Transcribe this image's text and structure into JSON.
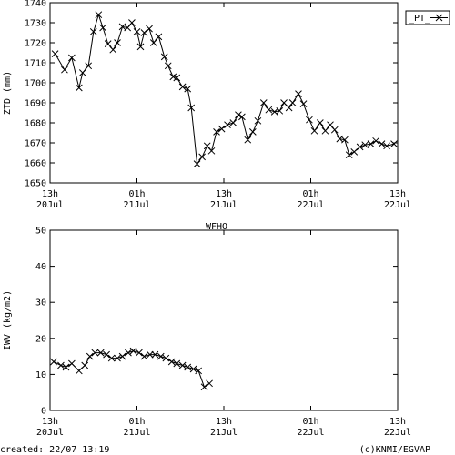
{
  "footer": {
    "created": "created: 22/07 13:19",
    "credit": "(c)KNMI/EGVAP"
  },
  "chart_data": [
    {
      "type": "line",
      "title": "",
      "xlabel": "",
      "ylabel": "ZTD (mm)",
      "ylim": [
        1650,
        1740
      ],
      "yticks": [
        1650,
        1660,
        1670,
        1680,
        1690,
        1700,
        1710,
        1720,
        1730,
        1740
      ],
      "xlim": [
        0,
        48
      ],
      "xticks": [
        {
          "x": 0,
          "line1": "13h",
          "line2": "20Jul"
        },
        {
          "x": 12,
          "line1": "01h",
          "line2": "21Jul"
        },
        {
          "x": 24,
          "line1": "13h",
          "line2": "21Jul"
        },
        {
          "x": 36,
          "line1": "01h",
          "line2": "22Jul"
        },
        {
          "x": 48,
          "line1": "13h",
          "line2": "22Jul"
        }
      ],
      "legend": {
        "position": "top-right",
        "label": "_PT_"
      },
      "series": [
        {
          "name": "_PT_",
          "x": [
            0.7,
            2.0,
            3.0,
            4.0,
            4.5,
            5.3,
            6.0,
            6.7,
            7.3,
            8.0,
            8.7,
            9.3,
            10.0,
            10.7,
            11.3,
            12.0,
            12.5,
            13.0,
            13.7,
            14.3,
            15.0,
            15.8,
            16.3,
            17.0,
            17.5,
            18.3,
            19.0,
            19.5,
            20.3,
            21.0,
            21.7,
            22.3,
            23.0,
            23.7,
            24.5,
            25.3,
            26.0,
            26.5,
            27.3,
            28.0,
            28.7,
            29.5,
            30.2,
            31.0,
            31.7,
            32.3,
            33.0,
            33.5,
            34.3,
            35.0,
            35.8,
            36.5,
            37.3,
            38.0,
            38.7,
            39.3,
            40.0,
            40.7,
            41.3,
            42.0,
            42.8,
            43.5,
            44.3,
            45.0,
            45.8,
            46.5,
            47.5
          ],
          "values": [
            1714.5,
            1706.5,
            1712.5,
            1697.5,
            1705,
            1708.5,
            1725.5,
            1734,
            1727.5,
            1719.5,
            1716.5,
            1720,
            1728,
            1727.5,
            1730,
            1725.5,
            1718,
            1725,
            1727,
            1720,
            1723,
            1713,
            1708.5,
            1703,
            1702.5,
            1698,
            1697,
            1687.5,
            1659.5,
            1663,
            1668.5,
            1666,
            1675.5,
            1677,
            1679,
            1680,
            1684,
            1683,
            1671.5,
            1675.5,
            1681,
            1690,
            1686.5,
            1685.5,
            1686,
            1690,
            1687.5,
            1690,
            1694.5,
            1689.5,
            1681.5,
            1676,
            1680,
            1676,
            1679,
            1676.5,
            1672,
            1671.5,
            1664,
            1665.5,
            1668,
            1669,
            1669.5,
            1671,
            1669.5,
            1668.5,
            1669.5
          ]
        }
      ]
    },
    {
      "type": "line",
      "title": "WFHO",
      "xlabel": "",
      "ylabel": "IWV (kg/m2)",
      "ylim": [
        0,
        50
      ],
      "yticks": [
        0,
        10,
        20,
        30,
        40,
        50
      ],
      "xlim": [
        0,
        48
      ],
      "xticks": [
        {
          "x": 0,
          "line1": "13h",
          "line2": "20Jul"
        },
        {
          "x": 12,
          "line1": "01h",
          "line2": "21Jul"
        },
        {
          "x": 24,
          "line1": "13h",
          "line2": "21Jul"
        },
        {
          "x": 36,
          "line1": "01h",
          "line2": "22Jul"
        },
        {
          "x": 48,
          "line1": "13h",
          "line2": "22Jul"
        }
      ],
      "series": [
        {
          "name": "",
          "x": [
            0.5,
            1.5,
            2.2,
            3.0,
            4.0,
            4.8,
            5.5,
            6.2,
            7.0,
            7.8,
            8.5,
            9.3,
            10.0,
            10.8,
            11.5,
            12.3,
            13.0,
            13.8,
            14.5,
            15.3,
            16.0,
            16.8,
            17.5,
            18.3,
            19.0,
            19.8,
            20.5,
            21.3,
            22.0
          ],
          "values": [
            13.5,
            12.5,
            12,
            13,
            11,
            12.5,
            15,
            16,
            16,
            15.5,
            14.5,
            14.5,
            15,
            16,
            16.5,
            16,
            15,
            15.5,
            15.5,
            15,
            14.5,
            13.5,
            13,
            12.5,
            12,
            11.5,
            11,
            6.5,
            7.5
          ]
        }
      ]
    }
  ]
}
